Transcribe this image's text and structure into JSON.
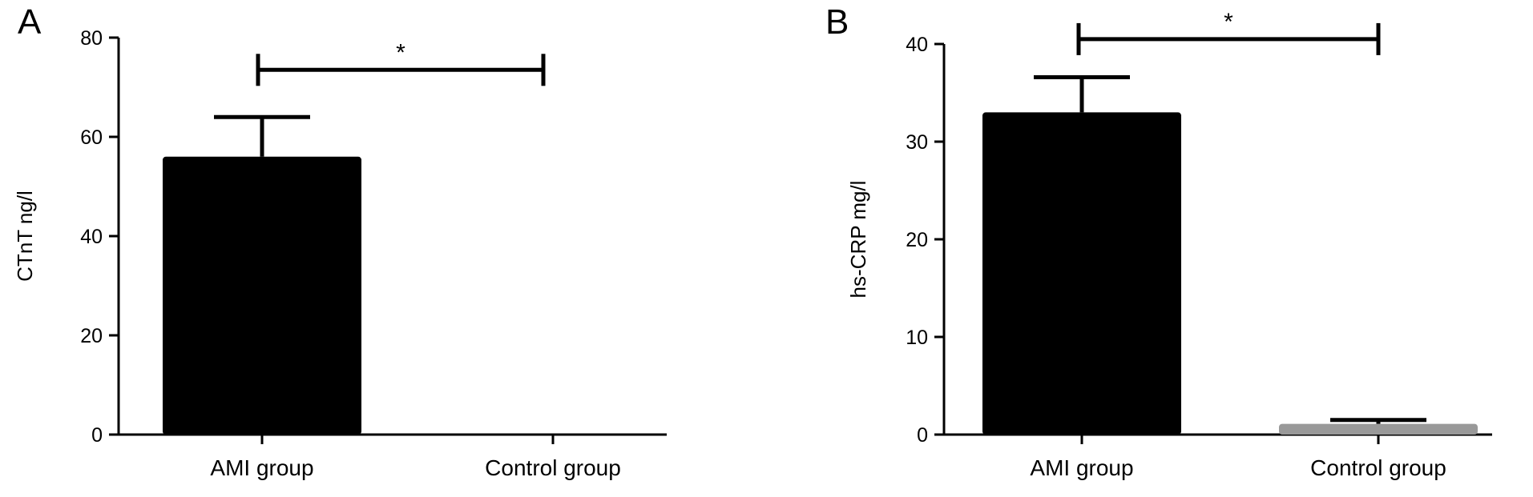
{
  "chart_data": [
    {
      "type": "bar",
      "panel": "A",
      "ylabel": "CTnT ng/l",
      "categories": [
        "AMI group",
        "Control group"
      ],
      "values": [
        56,
        0
      ],
      "errors": [
        8,
        0
      ],
      "ylim": [
        0,
        80
      ],
      "yticks": [
        0,
        20,
        40,
        60,
        80
      ],
      "bar_colors": [
        "#000000",
        "#999999"
      ],
      "significance": {
        "label": "*",
        "y": 73.5
      }
    },
    {
      "type": "bar",
      "panel": "B",
      "ylabel": "hs-CRP mg/l",
      "categories": [
        "AMI group",
        "Control group"
      ],
      "values": [
        33,
        1.1
      ],
      "errors": [
        3.6,
        0.4
      ],
      "ylim": [
        0,
        40
      ],
      "yticks": [
        0,
        10,
        20,
        30,
        40
      ],
      "bar_colors": [
        "#000000",
        "#999999"
      ],
      "significance": {
        "label": "*",
        "y": 40.5
      }
    }
  ]
}
